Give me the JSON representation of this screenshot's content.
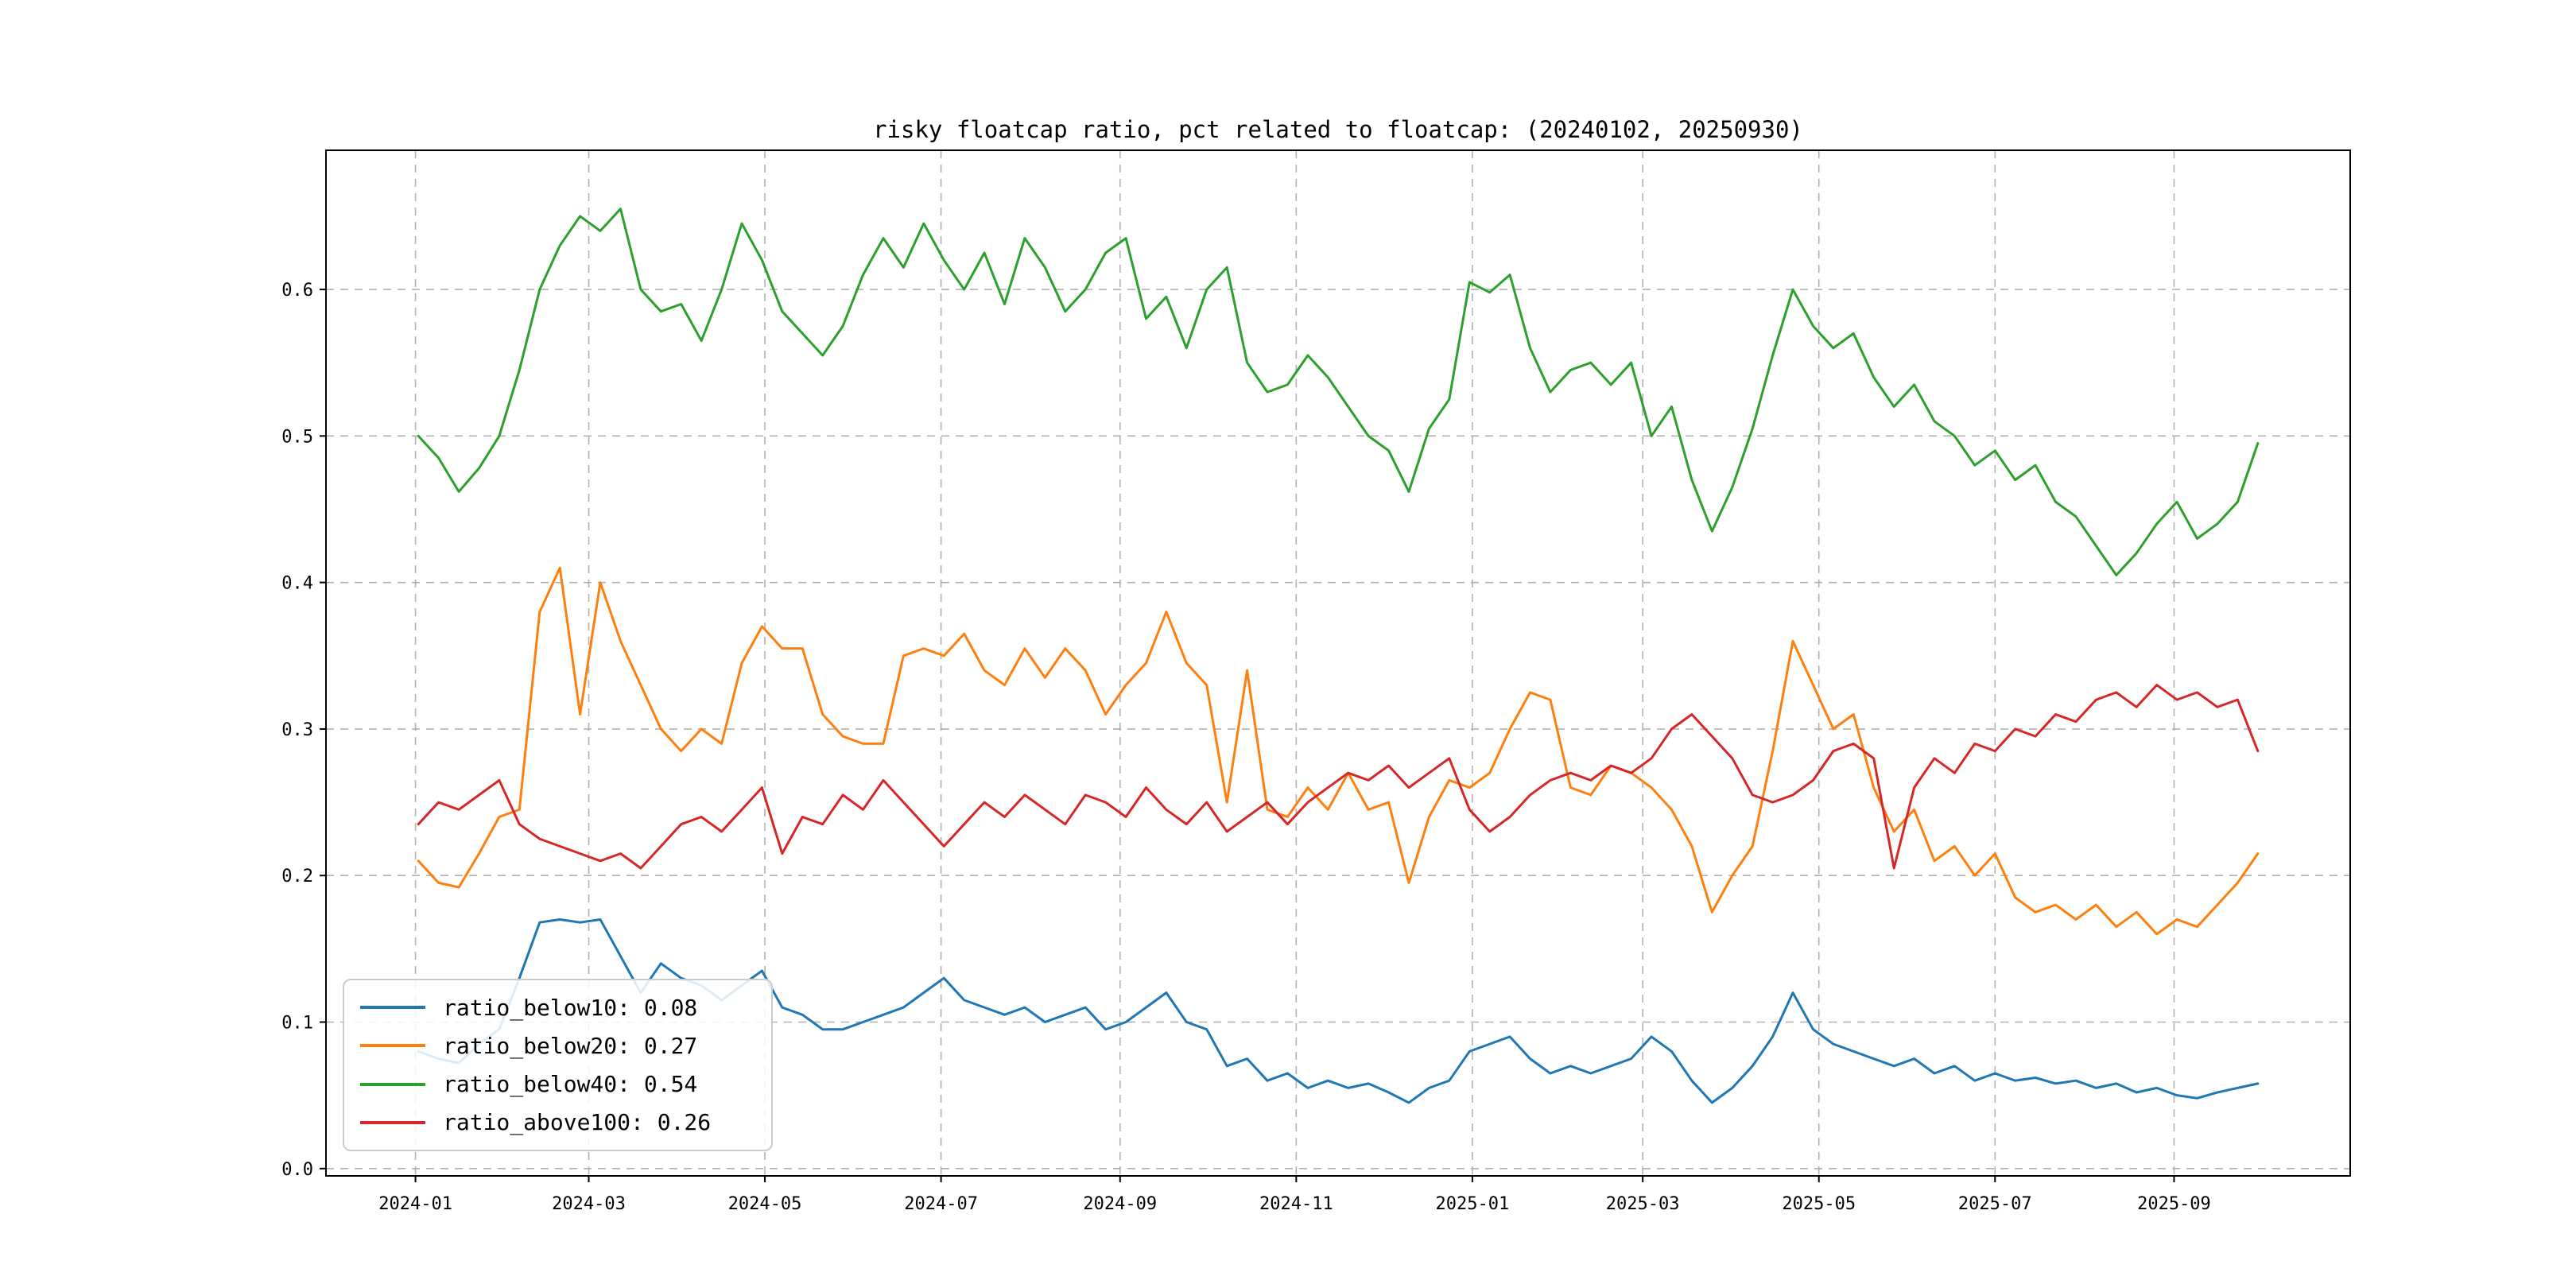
{
  "chart_data": {
    "type": "line",
    "title": "risky floatcap ratio, pct related to floatcap: (20240102, 20250930)",
    "xlabel": "",
    "ylabel": "",
    "grid": true,
    "grid_style": "dashed",
    "legend_position": "lower left",
    "background": "#ffffff",
    "xlim_days": [
      -32,
      669
    ],
    "ylim": [
      -0.005,
      0.695
    ],
    "x_days_note": "days offset from 2024-01-02, weekly samples through 2025-09-30",
    "x_days": [
      0,
      7,
      14,
      21,
      28,
      35,
      42,
      49,
      56,
      63,
      70,
      77,
      84,
      91,
      98,
      105,
      112,
      119,
      126,
      133,
      140,
      147,
      154,
      161,
      168,
      175,
      182,
      189,
      196,
      203,
      210,
      217,
      224,
      231,
      238,
      245,
      252,
      259,
      266,
      273,
      280,
      287,
      294,
      301,
      308,
      315,
      322,
      329,
      336,
      343,
      350,
      357,
      364,
      371,
      378,
      385,
      392,
      399,
      406,
      413,
      420,
      427,
      434,
      441,
      448,
      455,
      462,
      469,
      476,
      483,
      490,
      497,
      504,
      511,
      518,
      525,
      532,
      539,
      546,
      553,
      560,
      567,
      574,
      581,
      588,
      595,
      602,
      609,
      616,
      623,
      630,
      637
    ],
    "xticks": [
      {
        "day": -1,
        "label": "2024-01"
      },
      {
        "day": 59,
        "label": "2024-03"
      },
      {
        "day": 120,
        "label": "2024-05"
      },
      {
        "day": 181,
        "label": "2024-07"
      },
      {
        "day": 243,
        "label": "2024-09"
      },
      {
        "day": 304,
        "label": "2024-11"
      },
      {
        "day": 365,
        "label": "2025-01"
      },
      {
        "day": 424,
        "label": "2025-03"
      },
      {
        "day": 485,
        "label": "2025-05"
      },
      {
        "day": 546,
        "label": "2025-07"
      },
      {
        "day": 608,
        "label": "2025-09"
      }
    ],
    "yticks": [
      {
        "value": 0.0,
        "label": "0.0"
      },
      {
        "value": 0.1,
        "label": "0.1"
      },
      {
        "value": 0.2,
        "label": "0.2"
      },
      {
        "value": 0.3,
        "label": "0.3"
      },
      {
        "value": 0.4,
        "label": "0.4"
      },
      {
        "value": 0.5,
        "label": "0.5"
      },
      {
        "value": 0.6,
        "label": "0.6"
      }
    ],
    "series": [
      {
        "name": "ratio_below10",
        "legend_label": "ratio_below10: 0.08",
        "color": "#1f77b4",
        "values": [
          0.08,
          0.075,
          0.072,
          0.085,
          0.095,
          0.13,
          0.168,
          0.17,
          0.168,
          0.17,
          0.145,
          0.12,
          0.14,
          0.13,
          0.125,
          0.115,
          0.125,
          0.135,
          0.11,
          0.105,
          0.095,
          0.095,
          0.1,
          0.105,
          0.11,
          0.12,
          0.13,
          0.115,
          0.11,
          0.105,
          0.11,
          0.1,
          0.105,
          0.11,
          0.095,
          0.1,
          0.11,
          0.12,
          0.1,
          0.095,
          0.07,
          0.075,
          0.06,
          0.065,
          0.055,
          0.06,
          0.055,
          0.058,
          0.052,
          0.045,
          0.055,
          0.06,
          0.08,
          0.085,
          0.09,
          0.075,
          0.065,
          0.07,
          0.065,
          0.07,
          0.075,
          0.09,
          0.08,
          0.06,
          0.045,
          0.055,
          0.07,
          0.09,
          0.12,
          0.095,
          0.085,
          0.08,
          0.075,
          0.07,
          0.075,
          0.065,
          0.07,
          0.06,
          0.065,
          0.06,
          0.062,
          0.058,
          0.06,
          0.055,
          0.058,
          0.052,
          0.055,
          0.05,
          0.048,
          0.052,
          0.055,
          0.058
        ]
      },
      {
        "name": "ratio_below20",
        "legend_label": "ratio_below20: 0.27",
        "color": "#ff7f0e",
        "values": [
          0.21,
          0.195,
          0.192,
          0.215,
          0.24,
          0.245,
          0.38,
          0.41,
          0.31,
          0.4,
          0.36,
          0.33,
          0.3,
          0.285,
          0.3,
          0.29,
          0.345,
          0.37,
          0.355,
          0.355,
          0.31,
          0.295,
          0.29,
          0.29,
          0.35,
          0.355,
          0.35,
          0.365,
          0.34,
          0.33,
          0.355,
          0.335,
          0.355,
          0.34,
          0.31,
          0.33,
          0.345,
          0.38,
          0.345,
          0.33,
          0.25,
          0.34,
          0.245,
          0.24,
          0.26,
          0.245,
          0.27,
          0.245,
          0.25,
          0.195,
          0.24,
          0.265,
          0.26,
          0.27,
          0.3,
          0.325,
          0.32,
          0.26,
          0.255,
          0.275,
          0.27,
          0.26,
          0.245,
          0.22,
          0.175,
          0.2,
          0.22,
          0.285,
          0.36,
          0.33,
          0.3,
          0.31,
          0.26,
          0.23,
          0.245,
          0.21,
          0.22,
          0.2,
          0.215,
          0.185,
          0.175,
          0.18,
          0.17,
          0.18,
          0.165,
          0.175,
          0.16,
          0.17,
          0.165,
          0.18,
          0.195,
          0.215
        ]
      },
      {
        "name": "ratio_below40",
        "legend_label": "ratio_below40: 0.54",
        "color": "#2ca02c",
        "values": [
          0.5,
          0.485,
          0.462,
          0.478,
          0.5,
          0.545,
          0.6,
          0.63,
          0.65,
          0.64,
          0.655,
          0.6,
          0.585,
          0.59,
          0.565,
          0.6,
          0.645,
          0.62,
          0.585,
          0.57,
          0.555,
          0.575,
          0.61,
          0.635,
          0.615,
          0.645,
          0.62,
          0.6,
          0.625,
          0.59,
          0.635,
          0.615,
          0.585,
          0.6,
          0.625,
          0.635,
          0.58,
          0.595,
          0.56,
          0.6,
          0.615,
          0.55,
          0.53,
          0.535,
          0.555,
          0.54,
          0.52,
          0.5,
          0.49,
          0.462,
          0.505,
          0.525,
          0.605,
          0.598,
          0.61,
          0.56,
          0.53,
          0.545,
          0.55,
          0.535,
          0.55,
          0.5,
          0.52,
          0.47,
          0.435,
          0.465,
          0.505,
          0.555,
          0.6,
          0.575,
          0.56,
          0.57,
          0.54,
          0.52,
          0.535,
          0.51,
          0.5,
          0.48,
          0.49,
          0.47,
          0.48,
          0.455,
          0.445,
          0.425,
          0.405,
          0.42,
          0.44,
          0.455,
          0.43,
          0.44,
          0.455,
          0.495
        ]
      },
      {
        "name": "ratio_above100",
        "legend_label": "ratio_above100: 0.26",
        "color": "#d62728",
        "values": [
          0.235,
          0.25,
          0.245,
          0.255,
          0.265,
          0.235,
          0.225,
          0.22,
          0.215,
          0.21,
          0.215,
          0.205,
          0.22,
          0.235,
          0.24,
          0.23,
          0.245,
          0.26,
          0.215,
          0.24,
          0.235,
          0.255,
          0.245,
          0.265,
          0.25,
          0.235,
          0.22,
          0.235,
          0.25,
          0.24,
          0.255,
          0.245,
          0.235,
          0.255,
          0.25,
          0.24,
          0.26,
          0.245,
          0.235,
          0.25,
          0.23,
          0.24,
          0.25,
          0.235,
          0.25,
          0.26,
          0.27,
          0.265,
          0.275,
          0.26,
          0.27,
          0.28,
          0.245,
          0.23,
          0.24,
          0.255,
          0.265,
          0.27,
          0.265,
          0.275,
          0.27,
          0.28,
          0.3,
          0.31,
          0.295,
          0.28,
          0.255,
          0.25,
          0.255,
          0.265,
          0.285,
          0.29,
          0.28,
          0.205,
          0.26,
          0.28,
          0.27,
          0.29,
          0.285,
          0.3,
          0.295,
          0.31,
          0.305,
          0.32,
          0.325,
          0.315,
          0.33,
          0.32,
          0.325,
          0.315,
          0.32,
          0.285
        ]
      }
    ]
  }
}
